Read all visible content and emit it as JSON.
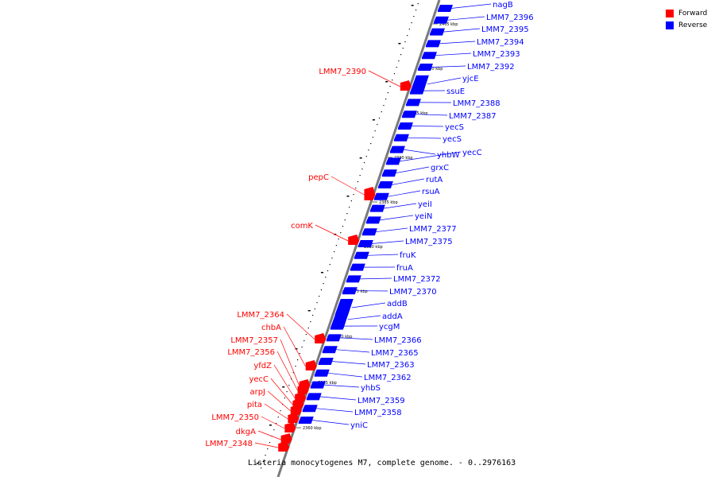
{
  "legend": {
    "forward_label": "Forward",
    "reverse_label": "Reverse",
    "forward_color": "#ff0000",
    "reverse_color": "#0000ff"
  },
  "caption": "Listeria monocytogenes M7, complete genome. - 0..2976163",
  "ticks": [
    "2405 kbp",
    "2400 kbp",
    "2395 kbp",
    "2390 kbp",
    "2385 kbp",
    "2380 kbp",
    "2375 kbp",
    "2370 kbp",
    "2365 kbp",
    "2360 kbp"
  ],
  "reverse_genes": [
    "nagB",
    "LMM7_2396",
    "LMM7_2395",
    "LMM7_2394",
    "LMM7_2393",
    "LMM7_2392",
    "yjcE",
    "ssuE",
    "LMM7_2388",
    "LMM7_2387",
    "yecS",
    "yecS",
    "yhbW",
    "yecC",
    "grxC",
    "rutA",
    "rsuA",
    "yeiI",
    "yeiN",
    "LMM7_2377",
    "LMM7_2375",
    "fruK",
    "fruA",
    "LMM7_2372",
    "LMM7_2370",
    "addB",
    "addA",
    "ycgM",
    "LMM7_2366",
    "LMM7_2365",
    "LMM7_2363",
    "LMM7_2362",
    "yhbS",
    "LMM7_2359",
    "LMM7_2358",
    "yniC"
  ],
  "forward_genes": [
    "LMM7_2390",
    "pepC",
    "comK",
    "LMM7_2364",
    "chbA",
    "LMM7_2357",
    "LMM7_2356",
    "yfdZ",
    "yecC",
    "arpJ",
    "pita",
    "LMM7_2350",
    "dkgA",
    "LMM7_2348"
  ]
}
